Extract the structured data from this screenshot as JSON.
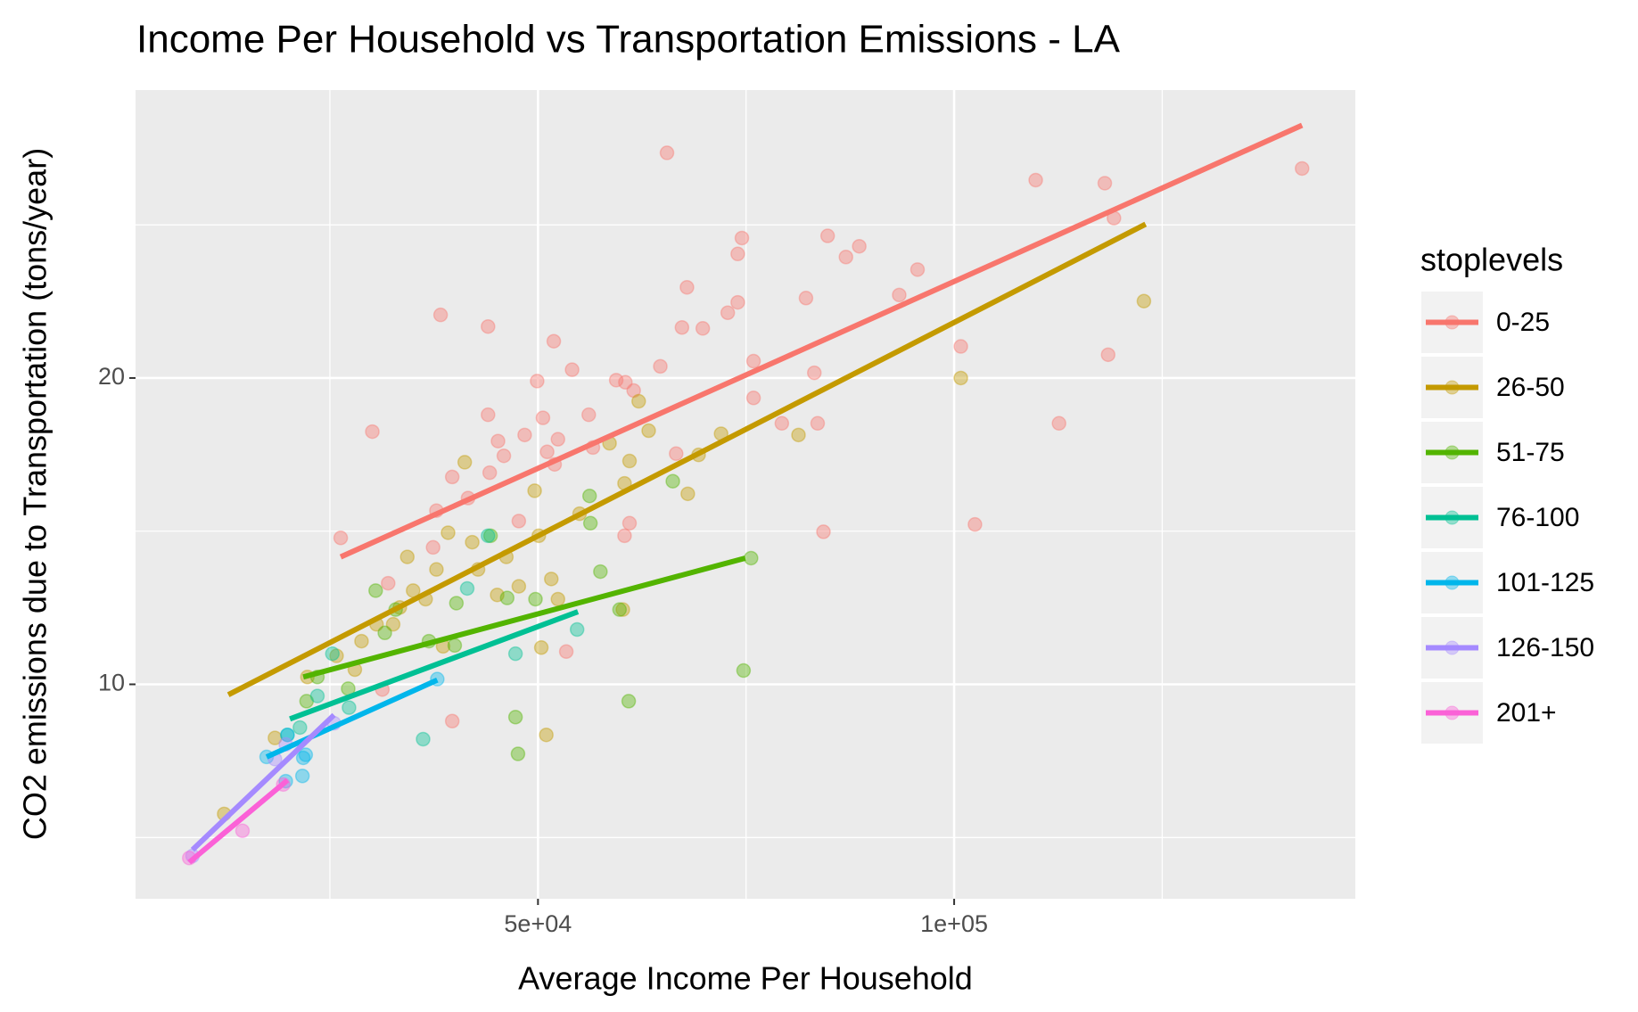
{
  "chart_data": {
    "type": "scatter",
    "title": "Income Per Household vs Transportation Emissions - LA",
    "x_label": "Average Income Per Household",
    "y_label": "CO2 emissions due to Transportation (tons/year)",
    "legend_title": "stoplevels",
    "legend": "right",
    "grid": true,
    "xlim": [
      1650,
      148200
    ],
    "ylim": [
      3.0,
      29.4
    ],
    "xticks": [
      {
        "value": 50000,
        "label": "5e+04"
      },
      {
        "value": 100000,
        "label": "1e+05"
      }
    ],
    "yticks": [
      10,
      20
    ],
    "x_minor_grid": [
      25000,
      75000,
      125000
    ],
    "y_minor_grid": [
      5,
      15,
      25
    ],
    "series": [
      {
        "name": "0-25",
        "color": "#F8766D",
        "x": [
          65500,
          109800,
          118100,
          141800,
          119200,
          84800,
          74500,
          74000,
          88600,
          87000,
          95600,
          67900,
          93400,
          82200,
          74000,
          72800,
          38300,
          44000,
          67300,
          69800,
          51900,
          100800,
          118500,
          75900,
          54100,
          64700,
          49900,
          59400,
          83200,
          60500,
          61500,
          75900,
          44000,
          56100,
          50600,
          79300,
          83600,
          112600,
          30100,
          48400,
          52400,
          45200,
          51100,
          56600,
          45900,
          66600,
          102500,
          84300,
          39700,
          44200,
          41600,
          61000,
          26300,
          60400,
          37800,
          32000,
          31300,
          39700,
          53400,
          47700,
          37400,
          52000
        ],
        "values": [
          27.35,
          26.46,
          26.36,
          26.84,
          25.22,
          24.64,
          24.57,
          24.05,
          24.3,
          23.95,
          23.54,
          22.96,
          22.71,
          22.61,
          22.47,
          22.13,
          22.06,
          21.68,
          21.65,
          21.62,
          21.2,
          21.03,
          20.76,
          20.55,
          20.27,
          20.38,
          19.9,
          19.93,
          20.17,
          19.86,
          19.59,
          19.35,
          18.8,
          18.8,
          18.7,
          18.52,
          18.52,
          18.52,
          18.25,
          18.14,
          18.0,
          17.94,
          17.59,
          17.73,
          17.46,
          17.53,
          15.22,
          14.98,
          16.77,
          16.91,
          16.08,
          15.26,
          14.78,
          14.85,
          15.67,
          13.3,
          9.83,
          8.8,
          11.07,
          15.33,
          14.47,
          17.18
        ],
        "fit_x": [
          26300,
          141800
        ],
        "fit_y": [
          14.16,
          28.25
        ]
      },
      {
        "name": "26-50",
        "color": "#C49A00",
        "x": [
          122800,
          100800,
          62100,
          63300,
          72000,
          81300,
          58600,
          61000,
          69300,
          41200,
          60400,
          68000,
          49600,
          55000,
          50100,
          39200,
          42100,
          42800,
          46200,
          51600,
          34300,
          37800,
          35000,
          45100,
          52400,
          33400,
          30600,
          28800,
          25800,
          28000,
          22300,
          18400,
          12300,
          51000,
          47700,
          38600,
          50400,
          60200,
          32600,
          36500
        ],
        "values": [
          22.51,
          20.0,
          19.24,
          18.28,
          18.18,
          18.14,
          17.87,
          17.29,
          17.49,
          17.25,
          16.56,
          16.22,
          16.32,
          15.57,
          14.85,
          14.95,
          14.64,
          13.75,
          14.16,
          13.44,
          14.16,
          13.75,
          13.06,
          12.92,
          12.78,
          12.51,
          11.96,
          11.41,
          10.93,
          10.48,
          10.24,
          8.25,
          5.77,
          8.35,
          13.2,
          11.24,
          11.2,
          12.44,
          11.96,
          12.78
        ],
        "fit_x": [
          12800,
          123000
        ],
        "fit_y": [
          9.66,
          25.02
        ]
      },
      {
        "name": "51-75",
        "color": "#53B400",
        "x": [
          56200,
          66200,
          56300,
          44300,
          57500,
          75600,
          59800,
          30500,
          32900,
          36900,
          40200,
          46300,
          49700,
          23500,
          27200,
          22200,
          74700,
          60900,
          47300,
          47600,
          40000,
          31600
        ],
        "values": [
          16.15,
          16.63,
          15.26,
          14.85,
          13.68,
          14.12,
          12.44,
          13.06,
          12.44,
          11.41,
          12.65,
          12.82,
          12.78,
          10.24,
          9.86,
          9.45,
          10.45,
          9.45,
          8.93,
          7.73,
          11.27,
          11.68
        ],
        "fit_x": [
          21800,
          74900
        ],
        "fit_y": [
          10.24,
          14.12
        ]
      },
      {
        "name": "76-100",
        "color": "#00C094",
        "x": [
          41500,
          44000,
          54700,
          47300,
          36200,
          27300,
          23500,
          21400,
          19900,
          25300
        ],
        "values": [
          13.13,
          14.85,
          11.79,
          11.0,
          8.21,
          9.24,
          9.62,
          8.59,
          8.35,
          11.0
        ],
        "fit_x": [
          20200,
          54800
        ],
        "fit_y": [
          8.87,
          12.37
        ]
      },
      {
        "name": "101-125",
        "color": "#00B6EB",
        "x": [
          17400,
          21700,
          22100,
          19700,
          37900,
          19900,
          21800
        ],
        "values": [
          7.63,
          7.01,
          7.7,
          6.84,
          10.17,
          8.35,
          7.6
        ],
        "fit_x": [
          17400,
          37900
        ],
        "fit_y": [
          7.63,
          10.14
        ]
      },
      {
        "name": "126-150",
        "color": "#A58AFF",
        "x": [
          25500,
          19700,
          18400,
          8500
        ],
        "values": [
          8.73,
          8.04,
          7.56,
          4.4
        ],
        "fit_x": [
          8500,
          25500
        ],
        "fit_y": [
          4.6,
          9.0
        ]
      },
      {
        "name": "201+",
        "color": "#FB61D7",
        "x": [
          8100,
          14500,
          19400
        ],
        "values": [
          4.33,
          5.22,
          6.73
        ],
        "fit_x": [
          8100,
          19900
        ],
        "fit_y": [
          4.19,
          6.87
        ]
      }
    ]
  }
}
